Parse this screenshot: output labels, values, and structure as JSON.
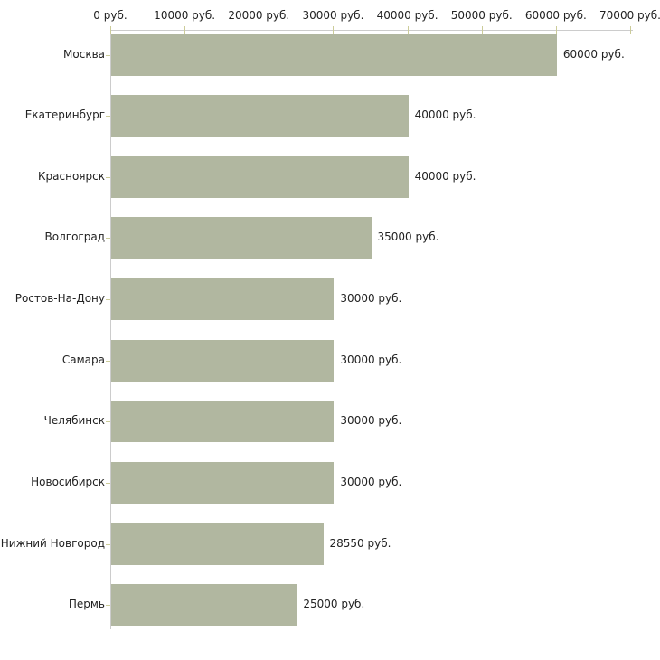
{
  "chart_data": {
    "type": "bar",
    "orientation": "horizontal",
    "title": "",
    "categories": [
      "Москва",
      "Екатеринбург",
      "Красноярск",
      "Волгоград",
      "Ростов-На-Дону",
      "Самара",
      "Челябинск",
      "Новосибирск",
      "Нижний Новгород",
      "Пермь"
    ],
    "values": [
      60000,
      40000,
      40000,
      35000,
      30000,
      30000,
      30000,
      30000,
      28550,
      25000
    ],
    "bar_value_labels": [
      "60000 руб.",
      "40000 руб.",
      "40000 руб.",
      "35000 руб.",
      "30000 руб.",
      "30000 руб.",
      "30000 руб.",
      "30000 руб.",
      "28550 руб.",
      "25000 руб."
    ],
    "unit": "руб.",
    "x_axis": {
      "position": "top",
      "range": [
        0,
        70000
      ],
      "ticks": [
        0,
        10000,
        20000,
        30000,
        40000,
        50000,
        60000,
        70000
      ],
      "tick_labels": [
        "0 руб.",
        "10000 руб.",
        "20000 руб.",
        "30000 руб.",
        "40000 руб.",
        "50000 руб.",
        "60000 руб.",
        "70000 руб."
      ]
    },
    "grid": false,
    "legend": false,
    "colors": {
      "bar": "#b1b7a0",
      "axis_line": "#cccccc",
      "tick_mark": "#cccc99",
      "text": "#222222",
      "background": "#ffffff"
    }
  }
}
